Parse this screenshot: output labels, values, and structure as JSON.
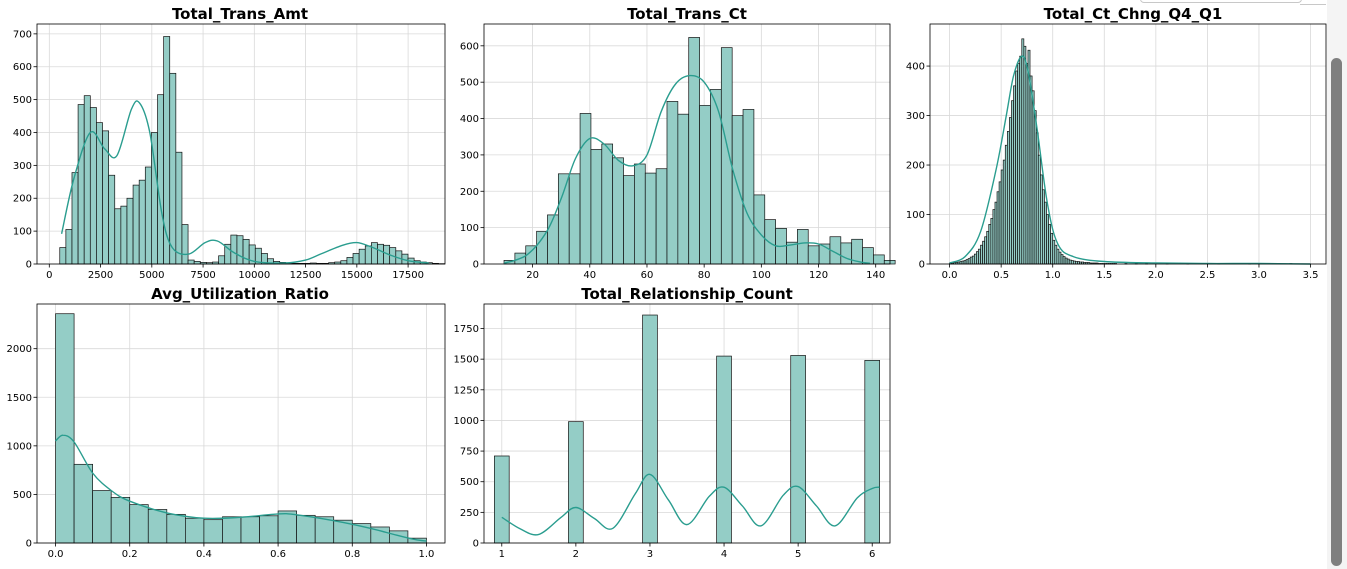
{
  "colors": {
    "bar_fill": "#94cdc6",
    "bar_edge": "#1a1a1a",
    "kde": "#2a9d8f",
    "grid": "#d9d9d9"
  },
  "scrollbar": {
    "icon": "vertical-scrollbar"
  },
  "chart_data": [
    {
      "type": "bar",
      "title": "Total_Trans_Amt",
      "xlim": [
        -600,
        19300
      ],
      "ylim": [
        0,
        730
      ],
      "xticks": [
        0,
        2500,
        5000,
        7500,
        10000,
        12500,
        15000,
        17500
      ],
      "xtick_labels": [
        "0",
        "2500",
        "5000",
        "7500",
        "10000",
        "12500",
        "15000",
        "17500"
      ],
      "yticks": [
        0,
        100,
        200,
        300,
        400,
        500,
        600,
        700
      ],
      "ytick_labels": [
        "0",
        "100",
        "200",
        "300",
        "400",
        "500",
        "600",
        "700"
      ],
      "grid": true,
      "bin_start": 510,
      "bin_width": 298,
      "values": [
        50,
        105,
        278,
        485,
        512,
        476,
        430,
        405,
        270,
        168,
        176,
        200,
        240,
        255,
        295,
        400,
        515,
        692,
        580,
        340,
        120,
        12,
        8,
        5,
        4,
        6,
        25,
        60,
        88,
        86,
        75,
        58,
        48,
        32,
        16,
        8,
        5,
        3,
        2,
        2,
        2,
        3,
        2,
        2,
        4,
        6,
        10,
        20,
        32,
        45,
        55,
        65,
        60,
        57,
        50,
        40,
        30,
        18,
        10,
        6,
        4,
        2,
        1
      ],
      "kde": [
        [
          600,
          92
        ],
        [
          1200,
          260
        ],
        [
          2000,
          400
        ],
        [
          2700,
          350
        ],
        [
          3300,
          330
        ],
        [
          4000,
          470
        ],
        [
          4400,
          490
        ],
        [
          4900,
          400
        ],
        [
          5500,
          150
        ],
        [
          6000,
          50
        ],
        [
          6800,
          30
        ],
        [
          7600,
          65
        ],
        [
          8200,
          70
        ],
        [
          9000,
          35
        ],
        [
          10000,
          8
        ],
        [
          11500,
          3
        ],
        [
          12500,
          12
        ],
        [
          13300,
          32
        ],
        [
          14300,
          57
        ],
        [
          15000,
          65
        ],
        [
          15700,
          52
        ],
        [
          16600,
          28
        ],
        [
          17500,
          10
        ],
        [
          18500,
          3
        ]
      ]
    },
    {
      "type": "bar",
      "title": "Total_Trans_Ct",
      "xlim": [
        3,
        145
      ],
      "ylim": [
        0,
        660
      ],
      "xticks": [
        20,
        40,
        60,
        80,
        100,
        120,
        140
      ],
      "xtick_labels": [
        "20",
        "40",
        "60",
        "80",
        "100",
        "120",
        "140"
      ],
      "yticks": [
        0,
        100,
        200,
        300,
        400,
        500,
        600
      ],
      "ytick_labels": [
        "0",
        "100",
        "200",
        "300",
        "400",
        "500",
        "600"
      ],
      "grid": true,
      "bin_start": 10,
      "bin_width": 3.8,
      "values": [
        10,
        30,
        50,
        90,
        135,
        248,
        248,
        414,
        315,
        330,
        292,
        243,
        275,
        250,
        262,
        447,
        412,
        623,
        436,
        480,
        595,
        408,
        425,
        190,
        122,
        98,
        60,
        95,
        50,
        55,
        75,
        58,
        68,
        45,
        25,
        10
      ],
      "kde": [
        [
          10,
          2
        ],
        [
          18,
          25
        ],
        [
          25,
          90
        ],
        [
          30,
          180
        ],
        [
          35,
          290
        ],
        [
          40,
          345
        ],
        [
          45,
          330
        ],
        [
          50,
          285
        ],
        [
          55,
          270
        ],
        [
          60,
          300
        ],
        [
          65,
          420
        ],
        [
          70,
          495
        ],
        [
          75,
          518
        ],
        [
          80,
          500
        ],
        [
          85,
          420
        ],
        [
          90,
          260
        ],
        [
          95,
          140
        ],
        [
          100,
          80
        ],
        [
          105,
          50
        ],
        [
          110,
          52
        ],
        [
          115,
          58
        ],
        [
          120,
          55
        ],
        [
          125,
          35
        ],
        [
          130,
          15
        ],
        [
          135,
          5
        ],
        [
          138,
          2
        ]
      ]
    },
    {
      "type": "bar",
      "title": "Total_Ct_Chng_Q4_Q1",
      "xlim": [
        -0.19,
        3.65
      ],
      "ylim": [
        0,
        485
      ],
      "xticks": [
        0.0,
        0.5,
        1.0,
        1.5,
        2.0,
        2.5,
        3.0,
        3.5
      ],
      "xtick_labels": [
        "0.0",
        "0.5",
        "1.0",
        "1.5",
        "2.0",
        "2.5",
        "3.0",
        "3.5"
      ],
      "yticks": [
        0,
        100,
        200,
        300,
        400
      ],
      "ytick_labels": [
        "0",
        "100",
        "200",
        "300",
        "400"
      ],
      "grid": true,
      "bin_start": 0.0,
      "bin_width": 0.02,
      "values": [
        2,
        2,
        3,
        3,
        4,
        5,
        6,
        7,
        9,
        11,
        14,
        16,
        20,
        25,
        30,
        38,
        46,
        55,
        66,
        80,
        92,
        110,
        125,
        146,
        166,
        190,
        210,
        240,
        268,
        296,
        330,
        360,
        390,
        405,
        420,
        455,
        440,
        405,
        432,
        380,
        350,
        310,
        265,
        220,
        180,
        150,
        125,
        100,
        80,
        62,
        48,
        38,
        30,
        24,
        19,
        15,
        12,
        10,
        8,
        7,
        6,
        5,
        5,
        4,
        4,
        3,
        3,
        3,
        2,
        2,
        2,
        2,
        1,
        1,
        1,
        1,
        1,
        1,
        1,
        1
      ],
      "tail_values": [
        1,
        1,
        1,
        1,
        0,
        1,
        0,
        1,
        0,
        0,
        1,
        0,
        0,
        1,
        0,
        0,
        0,
        1,
        0,
        0,
        0,
        1
      ],
      "kde": [
        [
          0.0,
          2
        ],
        [
          0.15,
          15
        ],
        [
          0.3,
          65
        ],
        [
          0.45,
          190
        ],
        [
          0.55,
          300
        ],
        [
          0.62,
          380
        ],
        [
          0.7,
          420
        ],
        [
          0.76,
          390
        ],
        [
          0.85,
          270
        ],
        [
          0.95,
          120
        ],
        [
          1.05,
          40
        ],
        [
          1.2,
          15
        ],
        [
          1.5,
          5
        ],
        [
          2.0,
          2
        ],
        [
          2.5,
          1
        ],
        [
          3.0,
          1
        ],
        [
          3.5,
          0
        ]
      ]
    },
    {
      "type": "bar",
      "title": "Avg_Utilization_Ratio",
      "xlim": [
        -0.05,
        1.05
      ],
      "ylim": [
        0,
        2460
      ],
      "xticks": [
        0.0,
        0.2,
        0.4,
        0.6,
        0.8,
        1.0
      ],
      "xtick_labels": [
        "0.0",
        "0.2",
        "0.4",
        "0.6",
        "0.8",
        "1.0"
      ],
      "yticks": [
        0,
        500,
        1000,
        1500,
        2000
      ],
      "ytick_labels": [
        "0",
        "500",
        "1000",
        "1500",
        "2000"
      ],
      "grid": true,
      "bin_start": 0.0,
      "bin_width": 0.05,
      "values": [
        2360,
        810,
        540,
        470,
        395,
        345,
        295,
        255,
        240,
        270,
        270,
        280,
        330,
        285,
        270,
        235,
        200,
        165,
        125,
        50
      ],
      "kde": [
        [
          0.0,
          1050
        ],
        [
          0.02,
          1110
        ],
        [
          0.05,
          1040
        ],
        [
          0.1,
          720
        ],
        [
          0.15,
          540
        ],
        [
          0.2,
          430
        ],
        [
          0.3,
          310
        ],
        [
          0.4,
          255
        ],
        [
          0.5,
          265
        ],
        [
          0.6,
          300
        ],
        [
          0.65,
          290
        ],
        [
          0.75,
          230
        ],
        [
          0.85,
          150
        ],
        [
          0.92,
          80
        ],
        [
          0.97,
          35
        ],
        [
          1.0,
          20
        ]
      ]
    },
    {
      "type": "bar",
      "title": "Total_Relationship_Count",
      "xlim": [
        0.76,
        6.24
      ],
      "ylim": [
        0,
        1950
      ],
      "xticks": [
        1,
        2,
        3,
        4,
        5,
        6
      ],
      "xtick_labels": [
        "1",
        "2",
        "3",
        "4",
        "5",
        "6"
      ],
      "yticks": [
        0,
        250,
        500,
        750,
        1000,
        1250,
        1500,
        1750
      ],
      "ytick_labels": [
        "0",
        "250",
        "500",
        "750",
        "1000",
        "1250",
        "1500",
        "1750"
      ],
      "grid": true,
      "bin_width": 0.2,
      "bars": [
        [
          1,
          710
        ],
        [
          2,
          990
        ],
        [
          3,
          1860
        ],
        [
          4,
          1525
        ],
        [
          5,
          1530
        ],
        [
          6,
          1490
        ]
      ],
      "kde": [
        [
          1.0,
          210
        ],
        [
          1.25,
          115
        ],
        [
          1.5,
          70
        ],
        [
          1.8,
          210
        ],
        [
          2.0,
          290
        ],
        [
          2.25,
          200
        ],
        [
          2.5,
          120
        ],
        [
          2.8,
          400
        ],
        [
          3.0,
          560
        ],
        [
          3.25,
          350
        ],
        [
          3.5,
          150
        ],
        [
          3.8,
          380
        ],
        [
          4.0,
          455
        ],
        [
          4.25,
          300
        ],
        [
          4.5,
          140
        ],
        [
          4.8,
          390
        ],
        [
          5.0,
          460
        ],
        [
          5.25,
          300
        ],
        [
          5.5,
          140
        ],
        [
          5.8,
          370
        ],
        [
          6.0,
          445
        ],
        [
          6.1,
          455
        ]
      ]
    }
  ]
}
